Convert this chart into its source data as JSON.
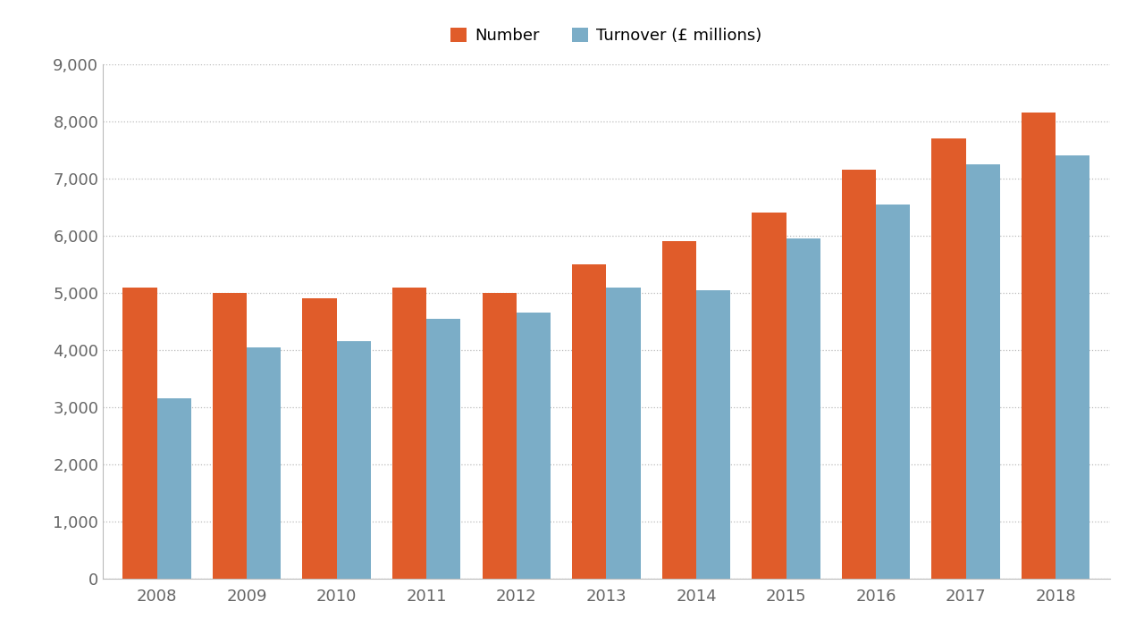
{
  "years": [
    2008,
    2009,
    2010,
    2011,
    2012,
    2013,
    2014,
    2015,
    2016,
    2017,
    2018
  ],
  "number": [
    5100,
    5000,
    4900,
    5100,
    5000,
    5500,
    5900,
    6400,
    7150,
    7700,
    8150
  ],
  "turnover": [
    3150,
    4050,
    4150,
    4550,
    4650,
    5100,
    5050,
    5950,
    6550,
    7250,
    7400
  ],
  "number_color": "#E05C2A",
  "turnover_color": "#7BADC7",
  "background_color": "#FFFFFF",
  "legend_number": "Number",
  "legend_turnover": "Turnover (£ millions)",
  "ylim": [
    0,
    9000
  ],
  "yticks": [
    0,
    1000,
    2000,
    3000,
    4000,
    5000,
    6000,
    7000,
    8000,
    9000
  ],
  "bar_width": 0.38,
  "grid_color": "#BBBBBB",
  "grid_linestyle": "dotted",
  "tick_label_fontsize": 13,
  "legend_fontsize": 13,
  "axis_label_color": "#666666",
  "spine_color": "#BBBBBB"
}
